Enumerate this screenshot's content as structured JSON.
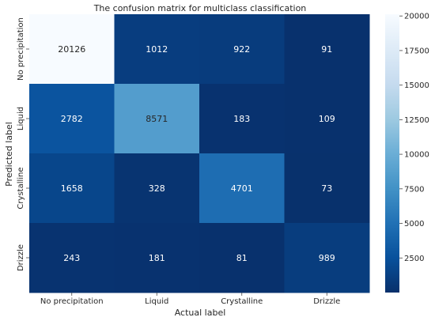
{
  "chart_data": {
    "type": "heatmap",
    "title": "The confusion matrix for multiclass classification",
    "xlabel": "Actual label",
    "ylabel": "Predicted label",
    "x_categories": [
      "No precipitation",
      "Liquid",
      "Crystalline",
      "Drizzle"
    ],
    "y_categories": [
      "No precipitation",
      "Liquid",
      "Crystalline",
      "Drizzle"
    ],
    "values": [
      [
        20126,
        1012,
        922,
        91
      ],
      [
        2782,
        8571,
        183,
        109
      ],
      [
        1658,
        328,
        4701,
        73
      ],
      [
        243,
        181,
        81,
        989
      ]
    ],
    "colorbar": {
      "min": 0,
      "max": 20126,
      "ticks": [
        2500,
        5000,
        7500,
        10000,
        12500,
        15000,
        17500,
        20000
      ],
      "colormap": "Blues"
    }
  }
}
